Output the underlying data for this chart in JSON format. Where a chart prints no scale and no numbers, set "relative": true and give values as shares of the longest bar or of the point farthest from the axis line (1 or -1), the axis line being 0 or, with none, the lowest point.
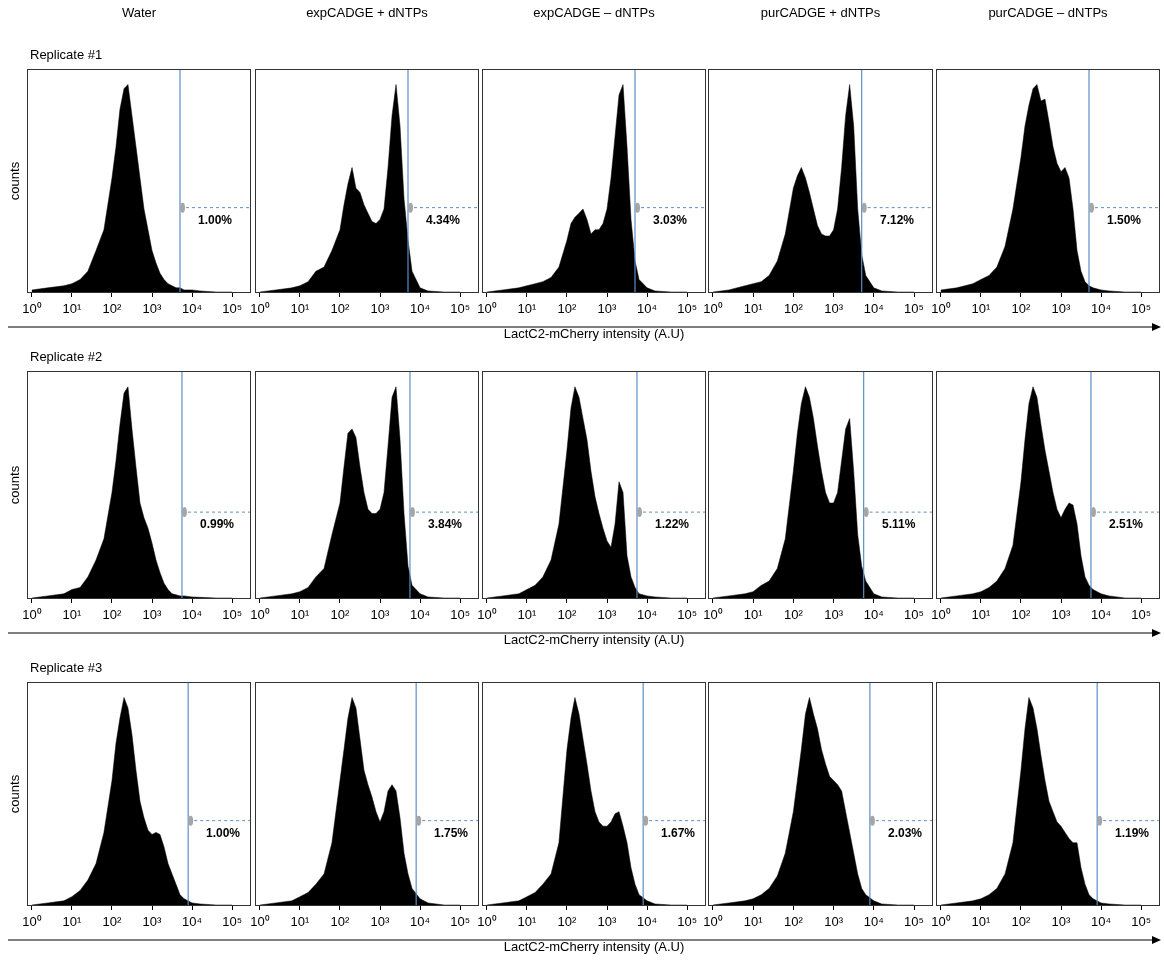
{
  "chart_data": [
    {
      "type": "area",
      "title": "Water",
      "subtitle": "Replicate #1",
      "ylabel": "counts",
      "relative": true,
      "log": "x",
      "color": "#000000",
      "xlim": [
        0.8,
        280000
      ],
      "xticks": [
        {
          "value": 1,
          "label": "10⁰"
        },
        {
          "value": 10,
          "label": "10¹"
        },
        {
          "value": 100,
          "label": "10²"
        },
        {
          "value": 1000,
          "label": "10³"
        },
        {
          "value": 10000,
          "label": "10⁴"
        },
        {
          "value": 100000,
          "label": "10⁵"
        }
      ],
      "ref_lines": [
        {
          "axis": "x",
          "value": 5000,
          "color": "#5b8fc7"
        }
      ],
      "annotations": [
        "1.00%"
      ],
      "x": [
        1,
        2.5,
        6.3,
        10,
        16,
        25,
        40,
        63,
        100,
        126,
        158,
        200,
        251,
        316,
        398,
        501,
        631,
        794,
        1000,
        1259,
        1585,
        1995,
        2512,
        3162,
        3981,
        5012,
        6310,
        10000,
        15849,
        39811,
        100000
      ],
      "values": [
        0.01,
        0.02,
        0.03,
        0.04,
        0.06,
        0.1,
        0.2,
        0.3,
        0.55,
        0.7,
        0.88,
        0.98,
        1.0,
        0.85,
        0.7,
        0.55,
        0.4,
        0.3,
        0.2,
        0.14,
        0.09,
        0.06,
        0.04,
        0.03,
        0.02,
        0.02,
        0.01,
        0.01,
        0.005,
        0,
        0
      ]
    },
    {
      "type": "area",
      "title": "expCADGE + dNTPs",
      "relative": true,
      "log": "x",
      "color": "#000000",
      "xlim": [
        0.8,
        280000
      ],
      "xticks": [
        {
          "value": 1,
          "label": "10⁰"
        },
        {
          "value": 10,
          "label": "10¹"
        },
        {
          "value": 100,
          "label": "10²"
        },
        {
          "value": 1000,
          "label": "10³"
        },
        {
          "value": 10000,
          "label": "10⁴"
        },
        {
          "value": 100000,
          "label": "10⁵"
        }
      ],
      "ref_lines": [
        {
          "axis": "x",
          "value": 5000,
          "color": "#5b8fc7"
        }
      ],
      "annotations": [
        "4.34%"
      ],
      "x": [
        1,
        2.5,
        6.3,
        10,
        16,
        25,
        40,
        63,
        100,
        126,
        158,
        200,
        251,
        316,
        398,
        501,
        631,
        794,
        1000,
        1259,
        1585,
        1995,
        2512,
        3162,
        3981,
        5012,
        6310,
        10000,
        15849,
        39811,
        100000
      ],
      "values": [
        0,
        0.01,
        0.02,
        0.03,
        0.05,
        0.1,
        0.12,
        0.2,
        0.3,
        0.42,
        0.52,
        0.6,
        0.5,
        0.48,
        0.42,
        0.38,
        0.34,
        0.33,
        0.35,
        0.4,
        0.6,
        0.85,
        1.0,
        0.8,
        0.45,
        0.25,
        0.1,
        0.02,
        0.005,
        0,
        0
      ]
    },
    {
      "type": "area",
      "title": "expCADGE – dNTPs",
      "relative": true,
      "log": "x",
      "color": "#000000",
      "xlim": [
        0.8,
        280000
      ],
      "xticks": [
        {
          "value": 1,
          "label": "10⁰"
        },
        {
          "value": 10,
          "label": "10¹"
        },
        {
          "value": 100,
          "label": "10²"
        },
        {
          "value": 1000,
          "label": "10³"
        },
        {
          "value": 10000,
          "label": "10⁴"
        },
        {
          "value": 100000,
          "label": "10⁵"
        }
      ],
      "ref_lines": [
        {
          "axis": "x",
          "value": 5000,
          "color": "#5b8fc7"
        }
      ],
      "annotations": [
        "3.03%"
      ],
      "xlabel": "LactC2-mCherry intensity (A.U)",
      "x": [
        1,
        2.5,
        6.3,
        10,
        16,
        25,
        40,
        63,
        100,
        126,
        158,
        200,
        251,
        316,
        398,
        501,
        631,
        794,
        1000,
        1259,
        1585,
        1995,
        2512,
        3162,
        3981,
        5012,
        6310,
        10000,
        15849,
        39811,
        100000
      ],
      "values": [
        0,
        0.01,
        0.02,
        0.03,
        0.04,
        0.05,
        0.07,
        0.12,
        0.25,
        0.33,
        0.36,
        0.38,
        0.4,
        0.35,
        0.28,
        0.3,
        0.3,
        0.33,
        0.4,
        0.55,
        0.75,
        0.95,
        1.0,
        0.7,
        0.35,
        0.15,
        0.06,
        0.02,
        0.005,
        0,
        0
      ]
    },
    {
      "type": "area",
      "title": "purCADGE + dNTPs",
      "relative": true,
      "log": "x",
      "color": "#000000",
      "xlim": [
        0.8,
        280000
      ],
      "xticks": [
        {
          "value": 1,
          "label": "10⁰"
        },
        {
          "value": 10,
          "label": "10¹"
        },
        {
          "value": 100,
          "label": "10²"
        },
        {
          "value": 1000,
          "label": "10³"
        },
        {
          "value": 10000,
          "label": "10⁴"
        },
        {
          "value": 100000,
          "label": "10⁵"
        }
      ],
      "ref_lines": [
        {
          "axis": "x",
          "value": 5000,
          "color": "#5b8fc7"
        }
      ],
      "annotations": [
        "7.12%"
      ],
      "x": [
        1,
        2.5,
        6.3,
        10,
        16,
        25,
        40,
        63,
        100,
        126,
        158,
        200,
        251,
        316,
        398,
        501,
        631,
        794,
        1000,
        1259,
        1585,
        1995,
        2512,
        3162,
        3981,
        5012,
        6310,
        10000,
        15849,
        39811,
        100000
      ],
      "values": [
        0,
        0.01,
        0.03,
        0.04,
        0.05,
        0.08,
        0.15,
        0.28,
        0.5,
        0.56,
        0.6,
        0.55,
        0.48,
        0.4,
        0.32,
        0.28,
        0.27,
        0.27,
        0.3,
        0.4,
        0.6,
        0.85,
        1.0,
        0.8,
        0.4,
        0.18,
        0.08,
        0.02,
        0.005,
        0,
        0
      ]
    },
    {
      "type": "area",
      "title": "purCADGE – dNTPs",
      "relative": true,
      "log": "x",
      "color": "#000000",
      "xlim": [
        0.8,
        280000
      ],
      "xticks": [
        {
          "value": 1,
          "label": "10⁰"
        },
        {
          "value": 10,
          "label": "10¹"
        },
        {
          "value": 100,
          "label": "10²"
        },
        {
          "value": 1000,
          "label": "10³"
        },
        {
          "value": 10000,
          "label": "10⁴"
        },
        {
          "value": 100000,
          "label": "10⁵"
        }
      ],
      "ref_lines": [
        {
          "axis": "x",
          "value": 5000,
          "color": "#5b8fc7"
        }
      ],
      "annotations": [
        "1.50%"
      ],
      "x": [
        1,
        2.5,
        6.3,
        10,
        16,
        25,
        40,
        63,
        100,
        126,
        158,
        200,
        251,
        316,
        398,
        501,
        631,
        794,
        1000,
        1259,
        1585,
        1995,
        2512,
        3162,
        3981,
        5012,
        6310,
        10000,
        15849,
        39811,
        100000
      ],
      "values": [
        0.01,
        0.02,
        0.04,
        0.06,
        0.08,
        0.12,
        0.22,
        0.4,
        0.65,
        0.8,
        0.9,
        0.98,
        1.0,
        0.92,
        0.93,
        0.82,
        0.7,
        0.62,
        0.58,
        0.6,
        0.55,
        0.4,
        0.2,
        0.1,
        0.05,
        0.03,
        0.02,
        0.01,
        0.005,
        0,
        0
      ]
    },
    {
      "type": "area",
      "subtitle": "Replicate #2",
      "ylabel": "counts",
      "relative": true,
      "log": "x",
      "color": "#000000",
      "xlim": [
        0.8,
        280000
      ],
      "xticks": [
        {
          "value": 1,
          "label": "10⁰"
        },
        {
          "value": 10,
          "label": "10¹"
        },
        {
          "value": 100,
          "label": "10²"
        },
        {
          "value": 1000,
          "label": "10³"
        },
        {
          "value": 10000,
          "label": "10⁴"
        },
        {
          "value": 100000,
          "label": "10⁵"
        }
      ],
      "ref_lines": [
        {
          "axis": "x",
          "value": 5600,
          "color": "#5b8fc7"
        }
      ],
      "annotations": [
        "0.99%"
      ],
      "x": [
        1,
        2.5,
        6.3,
        10,
        16,
        25,
        40,
        63,
        100,
        126,
        158,
        200,
        251,
        316,
        398,
        501,
        631,
        794,
        1000,
        1259,
        1585,
        1995,
        2512,
        3162,
        3981,
        5012,
        6310,
        10000,
        15849,
        39811,
        100000
      ],
      "values": [
        0,
        0.01,
        0.02,
        0.04,
        0.05,
        0.1,
        0.18,
        0.28,
        0.5,
        0.65,
        0.82,
        0.97,
        1.0,
        0.8,
        0.62,
        0.45,
        0.38,
        0.33,
        0.26,
        0.18,
        0.12,
        0.07,
        0.04,
        0.02,
        0.015,
        0.01,
        0.01,
        0.005,
        0.003,
        0,
        0
      ]
    },
    {
      "type": "area",
      "relative": true,
      "log": "x",
      "color": "#000000",
      "xlim": [
        0.8,
        280000
      ],
      "xticks": [
        {
          "value": 1,
          "label": "10⁰"
        },
        {
          "value": 10,
          "label": "10¹"
        },
        {
          "value": 100,
          "label": "10²"
        },
        {
          "value": 1000,
          "label": "10³"
        },
        {
          "value": 10000,
          "label": "10⁴"
        },
        {
          "value": 100000,
          "label": "10⁵"
        }
      ],
      "ref_lines": [
        {
          "axis": "x",
          "value": 5600,
          "color": "#5b8fc7"
        }
      ],
      "annotations": [
        "3.84%"
      ],
      "x": [
        1,
        2.5,
        6.3,
        10,
        16,
        25,
        40,
        63,
        100,
        126,
        158,
        200,
        251,
        316,
        398,
        501,
        631,
        794,
        1000,
        1259,
        1585,
        1995,
        2512,
        3162,
        3981,
        5012,
        6310,
        10000,
        15849,
        39811,
        100000
      ],
      "values": [
        0,
        0.01,
        0.02,
        0.03,
        0.05,
        0.1,
        0.14,
        0.3,
        0.45,
        0.62,
        0.78,
        0.8,
        0.76,
        0.62,
        0.5,
        0.42,
        0.4,
        0.4,
        0.42,
        0.5,
        0.72,
        0.95,
        1.0,
        0.75,
        0.4,
        0.15,
        0.06,
        0.02,
        0.005,
        0,
        0
      ]
    },
    {
      "type": "area",
      "relative": true,
      "log": "x",
      "color": "#000000",
      "xlim": [
        0.8,
        280000
      ],
      "xticks": [
        {
          "value": 1,
          "label": "10⁰"
        },
        {
          "value": 10,
          "label": "10¹"
        },
        {
          "value": 100,
          "label": "10²"
        },
        {
          "value": 1000,
          "label": "10³"
        },
        {
          "value": 10000,
          "label": "10⁴"
        },
        {
          "value": 100000,
          "label": "10⁵"
        }
      ],
      "ref_lines": [
        {
          "axis": "x",
          "value": 5600,
          "color": "#5b8fc7"
        }
      ],
      "annotations": [
        "1.22%"
      ],
      "xlabel": "LactC2-mCherry intensity (A.U)",
      "x": [
        1,
        2.5,
        6.3,
        10,
        16,
        25,
        40,
        63,
        100,
        126,
        158,
        200,
        251,
        316,
        398,
        501,
        631,
        794,
        1000,
        1259,
        1585,
        1995,
        2512,
        3162,
        3981,
        5012,
        6310,
        10000,
        15849,
        39811,
        100000
      ],
      "values": [
        0,
        0.01,
        0.02,
        0.04,
        0.06,
        0.1,
        0.18,
        0.35,
        0.7,
        0.9,
        1.0,
        0.95,
        0.85,
        0.75,
        0.6,
        0.48,
        0.4,
        0.33,
        0.27,
        0.24,
        0.35,
        0.55,
        0.5,
        0.2,
        0.1,
        0.05,
        0.02,
        0.01,
        0.005,
        0,
        0
      ]
    },
    {
      "type": "area",
      "relative": true,
      "log": "x",
      "color": "#000000",
      "xlim": [
        0.8,
        280000
      ],
      "xticks": [
        {
          "value": 1,
          "label": "10⁰"
        },
        {
          "value": 10,
          "label": "10¹"
        },
        {
          "value": 100,
          "label": "10²"
        },
        {
          "value": 1000,
          "label": "10³"
        },
        {
          "value": 10000,
          "label": "10⁴"
        },
        {
          "value": 100000,
          "label": "10⁵"
        }
      ],
      "ref_lines": [
        {
          "axis": "x",
          "value": 5600,
          "color": "#5b8fc7"
        }
      ],
      "annotations": [
        "5.11%"
      ],
      "x": [
        1,
        2.5,
        6.3,
        10,
        16,
        25,
        40,
        63,
        100,
        126,
        158,
        200,
        251,
        316,
        398,
        501,
        631,
        794,
        1000,
        1259,
        1585,
        1995,
        2512,
        3162,
        3981,
        5012,
        6310,
        10000,
        15849,
        39811,
        100000
      ],
      "values": [
        0,
        0.01,
        0.02,
        0.03,
        0.06,
        0.08,
        0.14,
        0.28,
        0.6,
        0.78,
        0.92,
        1.0,
        0.95,
        0.85,
        0.72,
        0.6,
        0.5,
        0.45,
        0.45,
        0.5,
        0.65,
        0.8,
        0.85,
        0.6,
        0.3,
        0.15,
        0.08,
        0.02,
        0.005,
        0,
        0
      ]
    },
    {
      "type": "area",
      "relative": true,
      "log": "x",
      "color": "#000000",
      "xlim": [
        0.8,
        280000
      ],
      "xticks": [
        {
          "value": 1,
          "label": "10⁰"
        },
        {
          "value": 10,
          "label": "10¹"
        },
        {
          "value": 100,
          "label": "10²"
        },
        {
          "value": 1000,
          "label": "10³"
        },
        {
          "value": 10000,
          "label": "10⁴"
        },
        {
          "value": 100000,
          "label": "10⁵"
        }
      ],
      "ref_lines": [
        {
          "axis": "x",
          "value": 5600,
          "color": "#5b8fc7"
        }
      ],
      "annotations": [
        "2.51%"
      ],
      "x": [
        1,
        2.5,
        6.3,
        10,
        16,
        25,
        40,
        63,
        100,
        126,
        158,
        200,
        251,
        316,
        398,
        501,
        631,
        794,
        1000,
        1259,
        1585,
        1995,
        2512,
        3162,
        3981,
        5012,
        6310,
        10000,
        15849,
        39811,
        100000
      ],
      "values": [
        0,
        0.01,
        0.02,
        0.03,
        0.05,
        0.08,
        0.14,
        0.25,
        0.55,
        0.75,
        0.92,
        1.0,
        0.95,
        0.82,
        0.7,
        0.6,
        0.5,
        0.42,
        0.38,
        0.42,
        0.45,
        0.44,
        0.35,
        0.2,
        0.1,
        0.06,
        0.04,
        0.02,
        0.01,
        0,
        0
      ]
    },
    {
      "type": "area",
      "subtitle": "Replicate #3",
      "ylabel": "counts",
      "relative": true,
      "log": "x",
      "color": "#000000",
      "xlim": [
        0.8,
        280000
      ],
      "xticks": [
        {
          "value": 1,
          "label": "10⁰"
        },
        {
          "value": 10,
          "label": "10¹"
        },
        {
          "value": 100,
          "label": "10²"
        },
        {
          "value": 1000,
          "label": "10³"
        },
        {
          "value": 10000,
          "label": "10⁴"
        },
        {
          "value": 100000,
          "label": "10⁵"
        }
      ],
      "ref_lines": [
        {
          "axis": "x",
          "value": 8000,
          "color": "#5b8fc7"
        }
      ],
      "annotations": [
        "1.00%"
      ],
      "x": [
        1,
        2.5,
        6.3,
        10,
        16,
        25,
        40,
        63,
        100,
        126,
        158,
        200,
        251,
        316,
        398,
        501,
        631,
        794,
        1000,
        1259,
        1585,
        1995,
        2512,
        3162,
        3981,
        5012,
        6310,
        10000,
        15849,
        39811,
        100000
      ],
      "values": [
        0,
        0.01,
        0.02,
        0.04,
        0.07,
        0.12,
        0.2,
        0.35,
        0.6,
        0.78,
        0.9,
        1.0,
        0.95,
        0.82,
        0.65,
        0.5,
        0.42,
        0.36,
        0.34,
        0.35,
        0.34,
        0.28,
        0.2,
        0.15,
        0.1,
        0.05,
        0.03,
        0.01,
        0.005,
        0,
        0
      ]
    },
    {
      "type": "area",
      "relative": true,
      "log": "x",
      "color": "#000000",
      "xlim": [
        0.8,
        280000
      ],
      "xticks": [
        {
          "value": 1,
          "label": "10⁰"
        },
        {
          "value": 10,
          "label": "10¹"
        },
        {
          "value": 100,
          "label": "10²"
        },
        {
          "value": 1000,
          "label": "10³"
        },
        {
          "value": 10000,
          "label": "10⁴"
        },
        {
          "value": 100000,
          "label": "10⁵"
        }
      ],
      "ref_lines": [
        {
          "axis": "x",
          "value": 8000,
          "color": "#5b8fc7"
        }
      ],
      "annotations": [
        "1.75%"
      ],
      "x": [
        1,
        2.5,
        6.3,
        10,
        16,
        25,
        40,
        63,
        100,
        126,
        158,
        200,
        251,
        316,
        398,
        501,
        631,
        794,
        1000,
        1259,
        1585,
        1995,
        2512,
        3162,
        3981,
        5012,
        6310,
        10000,
        15849,
        39811,
        100000
      ],
      "values": [
        0,
        0.01,
        0.02,
        0.04,
        0.06,
        0.1,
        0.15,
        0.3,
        0.6,
        0.75,
        0.9,
        1.0,
        0.95,
        0.8,
        0.65,
        0.58,
        0.52,
        0.45,
        0.4,
        0.45,
        0.55,
        0.58,
        0.55,
        0.42,
        0.25,
        0.15,
        0.08,
        0.03,
        0.01,
        0,
        0
      ]
    },
    {
      "type": "area",
      "relative": true,
      "log": "x",
      "color": "#000000",
      "xlim": [
        0.8,
        280000
      ],
      "xticks": [
        {
          "value": 1,
          "label": "10⁰"
        },
        {
          "value": 10,
          "label": "10¹"
        },
        {
          "value": 100,
          "label": "10²"
        },
        {
          "value": 1000,
          "label": "10³"
        },
        {
          "value": 10000,
          "label": "10⁴"
        },
        {
          "value": 100000,
          "label": "10⁵"
        }
      ],
      "ref_lines": [
        {
          "axis": "x",
          "value": 8000,
          "color": "#5b8fc7"
        }
      ],
      "annotations": [
        "1.67%"
      ],
      "xlabel": "LactC2-mCherry intensity (A.U)",
      "x": [
        1,
        2.5,
        6.3,
        10,
        16,
        25,
        40,
        63,
        100,
        126,
        158,
        200,
        251,
        316,
        398,
        501,
        631,
        794,
        1000,
        1259,
        1585,
        1995,
        2512,
        3162,
        3981,
        5012,
        6310,
        10000,
        15849,
        39811,
        100000
      ],
      "values": [
        0,
        0.01,
        0.02,
        0.04,
        0.06,
        0.1,
        0.15,
        0.3,
        0.75,
        0.9,
        1.0,
        0.92,
        0.8,
        0.68,
        0.55,
        0.45,
        0.4,
        0.38,
        0.38,
        0.4,
        0.44,
        0.45,
        0.38,
        0.3,
        0.18,
        0.1,
        0.05,
        0.02,
        0.005,
        0,
        0
      ]
    },
    {
      "type": "area",
      "relative": true,
      "log": "x",
      "color": "#000000",
      "xlim": [
        0.8,
        280000
      ],
      "xticks": [
        {
          "value": 1,
          "label": "10⁰"
        },
        {
          "value": 10,
          "label": "10¹"
        },
        {
          "value": 100,
          "label": "10²"
        },
        {
          "value": 1000,
          "label": "10³"
        },
        {
          "value": 10000,
          "label": "10⁴"
        },
        {
          "value": 100000,
          "label": "10⁵"
        }
      ],
      "ref_lines": [
        {
          "axis": "x",
          "value": 8000,
          "color": "#5b8fc7"
        }
      ],
      "annotations": [
        "2.03%"
      ],
      "x": [
        1,
        2.5,
        6.3,
        10,
        16,
        25,
        40,
        63,
        100,
        126,
        158,
        200,
        251,
        316,
        398,
        501,
        631,
        794,
        1000,
        1259,
        1585,
        1995,
        2512,
        3162,
        3981,
        5012,
        6310,
        10000,
        15849,
        39811,
        100000
      ],
      "values": [
        0,
        0.01,
        0.02,
        0.03,
        0.05,
        0.08,
        0.14,
        0.25,
        0.45,
        0.6,
        0.75,
        0.92,
        1.0,
        0.92,
        0.85,
        0.75,
        0.68,
        0.62,
        0.6,
        0.58,
        0.55,
        0.45,
        0.35,
        0.25,
        0.15,
        0.08,
        0.05,
        0.02,
        0.005,
        0,
        0
      ]
    },
    {
      "type": "area",
      "relative": true,
      "log": "x",
      "color": "#000000",
      "xlim": [
        0.8,
        280000
      ],
      "xticks": [
        {
          "value": 1,
          "label": "10⁰"
        },
        {
          "value": 10,
          "label": "10¹"
        },
        {
          "value": 100,
          "label": "10²"
        },
        {
          "value": 1000,
          "label": "10³"
        },
        {
          "value": 10000,
          "label": "10⁴"
        },
        {
          "value": 100000,
          "label": "10⁵"
        }
      ],
      "ref_lines": [
        {
          "axis": "x",
          "value": 8000,
          "color": "#5b8fc7"
        }
      ],
      "annotations": [
        "1.19%"
      ],
      "x": [
        1,
        2.5,
        6.3,
        10,
        16,
        25,
        40,
        63,
        100,
        126,
        158,
        200,
        251,
        316,
        398,
        501,
        631,
        794,
        1000,
        1259,
        1585,
        1995,
        2512,
        3162,
        3981,
        5012,
        6310,
        10000,
        15849,
        39811,
        100000
      ],
      "values": [
        0,
        0.01,
        0.02,
        0.03,
        0.05,
        0.08,
        0.15,
        0.3,
        0.65,
        0.85,
        1.0,
        0.95,
        0.85,
        0.72,
        0.6,
        0.5,
        0.45,
        0.4,
        0.38,
        0.35,
        0.32,
        0.3,
        0.3,
        0.18,
        0.1,
        0.05,
        0.03,
        0.01,
        0.005,
        0,
        0
      ]
    }
  ]
}
